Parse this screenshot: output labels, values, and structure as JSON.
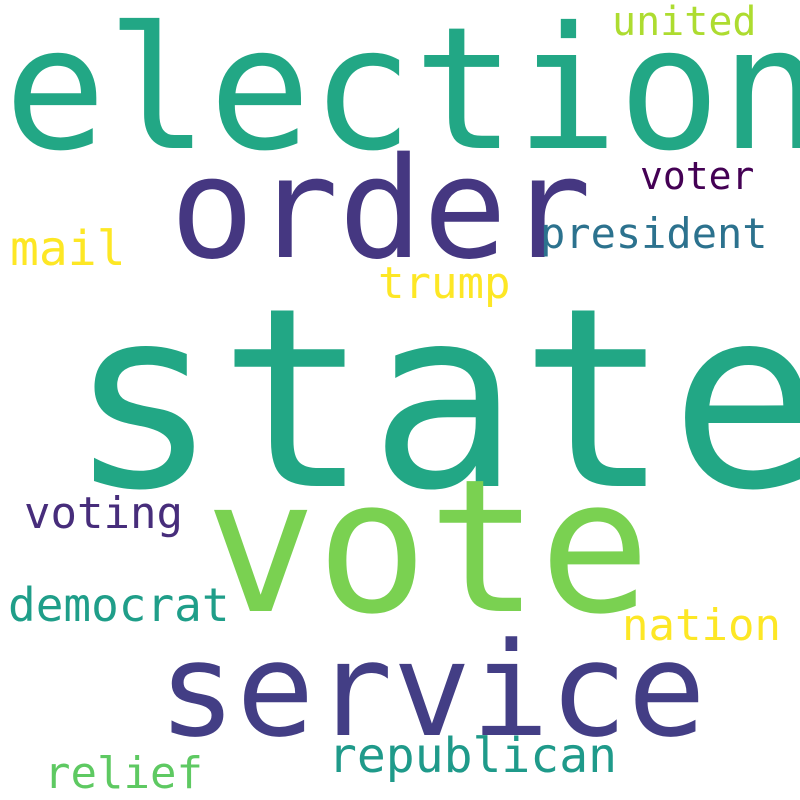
{
  "words": {
    "election": {
      "text": "election",
      "color": "#22a785"
    },
    "state": {
      "text": "state",
      "color": "#22a785"
    },
    "vote": {
      "text": "vote",
      "color": "#7ad151"
    },
    "order": {
      "text": "order",
      "color": "#453781"
    },
    "service": {
      "text": "service",
      "color": "#433e85"
    },
    "united": {
      "text": "united",
      "color": "#addc30"
    },
    "voter": {
      "text": "voter",
      "color": "#440154"
    },
    "president": {
      "text": "president",
      "color": "#2c728e"
    },
    "mail": {
      "text": "mail",
      "color": "#fde725"
    },
    "trump": {
      "text": "trump",
      "color": "#fde725"
    },
    "voting": {
      "text": "voting",
      "color": "#472d7b"
    },
    "democrat": {
      "text": "democrat",
      "color": "#1f9e89"
    },
    "nation": {
      "text": "nation",
      "color": "#fde725"
    },
    "republican": {
      "text": "republican",
      "color": "#1f9a8a"
    },
    "relief": {
      "text": "relief",
      "color": "#5ec962"
    }
  }
}
